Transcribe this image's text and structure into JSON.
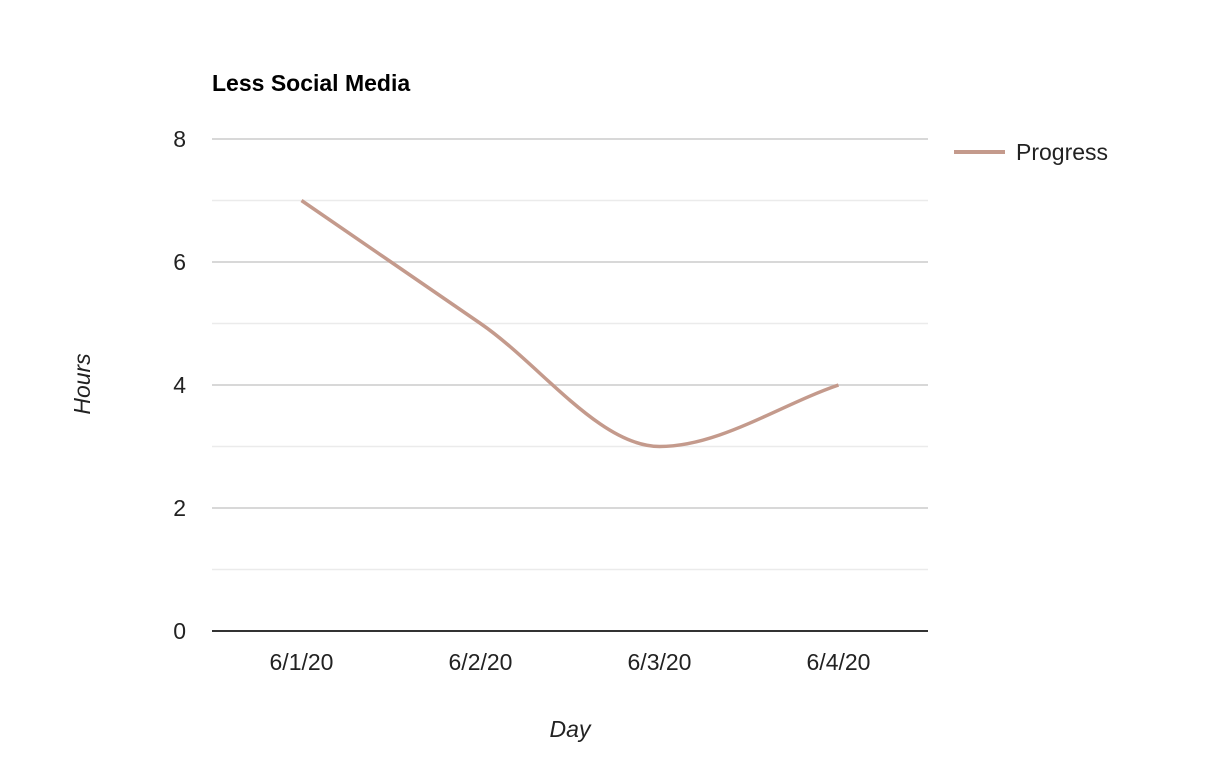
{
  "chart_data": {
    "type": "line",
    "title": "Less Social Media",
    "xlabel": "Day",
    "ylabel": "Hours",
    "categories": [
      "6/1/20",
      "6/2/20",
      "6/3/20",
      "6/4/20"
    ],
    "series": [
      {
        "name": "Progress",
        "values": [
          7,
          5,
          3,
          4
        ],
        "color": "#c49a8c"
      }
    ],
    "ylim": [
      0,
      8
    ],
    "yticks": [
      0,
      2,
      4,
      6,
      8
    ],
    "grid": true,
    "minor_grid": true,
    "smooth": true,
    "legend_position": "right"
  }
}
